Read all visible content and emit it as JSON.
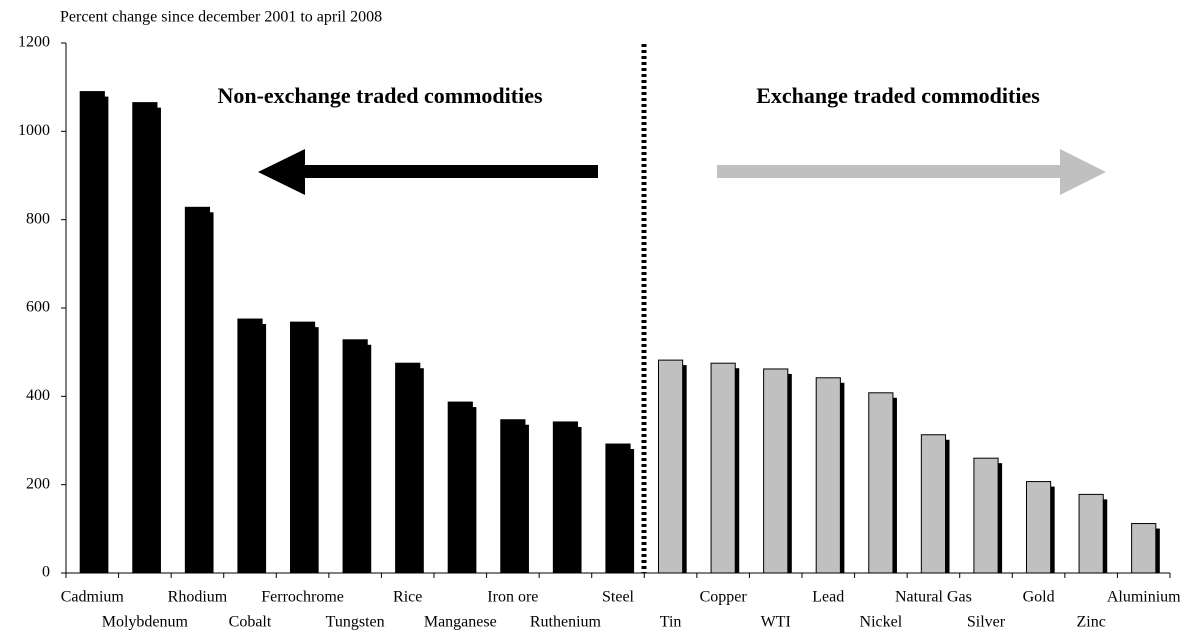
{
  "chart_data": {
    "type": "bar",
    "y_label": "Percent change since december 2001 to april 2008",
    "annotations": [
      "Non-exchange traded commodities",
      "Exchange traded commodities"
    ],
    "categories": [
      "Cadmium",
      "Molybdenum",
      "Rhodium",
      "Cobalt",
      "Ferrochrome",
      "Tungsten",
      "Rice",
      "Manganese",
      "Iron ore",
      "Ruthenium",
      "Steel",
      "Tin",
      "Copper",
      "WTI",
      "Lead",
      "Nickel",
      "Natural Gas",
      "Silver",
      "Gold",
      "Zinc",
      "Aluminium"
    ],
    "values": [
      1090,
      1065,
      828,
      575,
      568,
      528,
      475,
      387,
      347,
      342,
      292,
      482,
      475,
      462,
      442,
      408,
      313,
      260,
      207,
      178,
      112
    ],
    "colors": [
      "#000000",
      "#000000",
      "#000000",
      "#000000",
      "#000000",
      "#000000",
      "#000000",
      "#000000",
      "#000000",
      "#000000",
      "#000000",
      "#c0c0c0",
      "#c0c0c0",
      "#c0c0c0",
      "#c0c0c0",
      "#c0c0c0",
      "#c0c0c0",
      "#c0c0c0",
      "#c0c0c0",
      "#c0c0c0",
      "#c0c0c0"
    ],
    "ylim": [
      0,
      1200
    ],
    "yticks": [
      0,
      200,
      400,
      600,
      800,
      1000,
      1200
    ],
    "grid": false
  }
}
